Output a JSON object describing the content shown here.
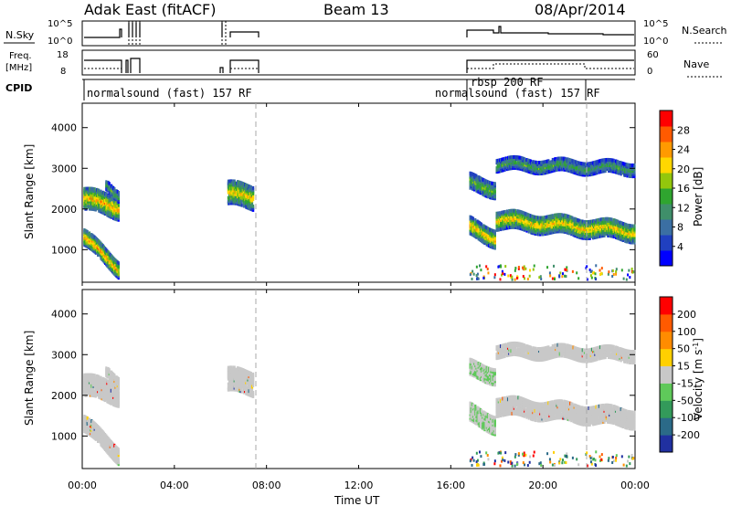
{
  "header": {
    "station": "Adak East (fitACF)",
    "beam": "Beam 13",
    "date": "08/Apr/2014"
  },
  "strip_panels": {
    "nsky": {
      "left_label": "N.Sky",
      "left_ticks": [
        "10^5",
        "10^0"
      ],
      "right_label": "N.Search",
      "right_ticks": [
        "10^5",
        "10^0"
      ]
    },
    "freq": {
      "left_label_1": "Freq.",
      "left_label_2": "[MHz]",
      "left_ticks": [
        "18",
        "8"
      ],
      "right_label": "Nave",
      "right_ticks": [
        "60",
        "0"
      ]
    },
    "cpid": {
      "label": "CPID",
      "segments": [
        {
          "text": "normalsound (fast) 157 RF"
        },
        {
          "text": "rbsp 200 RF"
        },
        {
          "text": "normalsound (fast) 157 RF"
        }
      ]
    }
  },
  "chart_data": [
    {
      "type": "heatmap",
      "name": "power",
      "ylabel": "Slant Range [km]",
      "y_ticks": [
        "4000",
        "3000",
        "2000",
        "1000"
      ],
      "ylim": [
        200,
        4600
      ],
      "colorbar": {
        "label": "Power [dB]",
        "ticks": [
          "28",
          "24",
          "20",
          "16",
          "12",
          "8",
          "4"
        ],
        "colors": [
          "#0000ff",
          "#2040c0",
          "#3b6fa3",
          "#3f8f6a",
          "#2fa52f",
          "#93c70c",
          "#ffd700",
          "#ff9a00",
          "#ff5a00",
          "#ff0000"
        ]
      }
    },
    {
      "type": "heatmap",
      "name": "velocity",
      "ylabel": "Slant Range [km]",
      "y_ticks": [
        "4000",
        "3000",
        "2000",
        "1000"
      ],
      "ylim": [
        200,
        4600
      ],
      "colorbar": {
        "label": "Velocity [m s^-1]",
        "ticks": [
          "200",
          "100",
          "50",
          "15",
          "-15",
          "-50",
          "-100",
          "-200"
        ],
        "colors": [
          "#2030a0",
          "#2b6a88",
          "#339a5a",
          "#5fc95a",
          "#c8c8c8",
          "#ffd000",
          "#ff8c00",
          "#ff5a00",
          "#ff0000"
        ]
      }
    }
  ],
  "x_axis": {
    "label": "Time UT",
    "ticks": [
      "00:00",
      "04:00",
      "08:00",
      "12:00",
      "16:00",
      "20:00",
      "00:00"
    ],
    "xlim_hours": [
      0,
      24
    ]
  }
}
